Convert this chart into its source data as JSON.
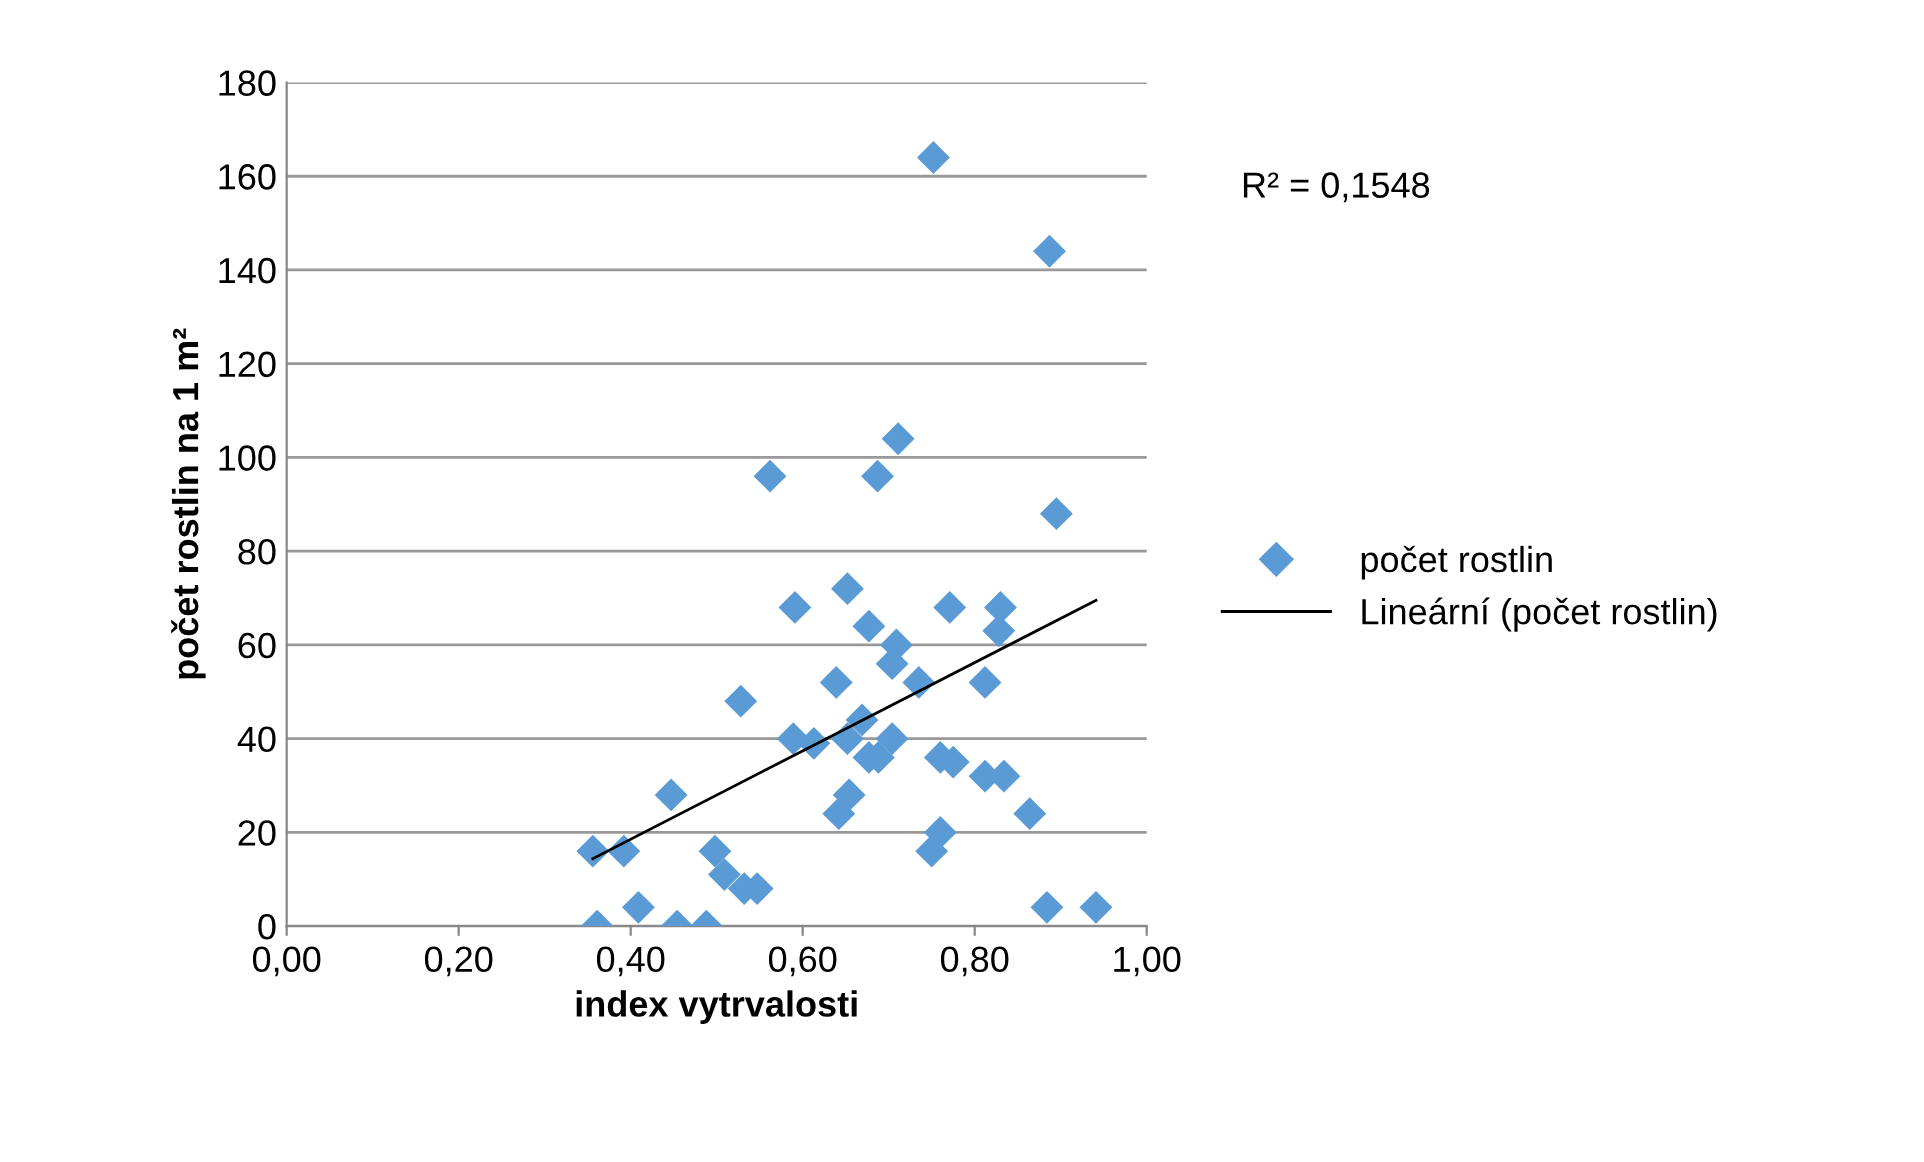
{
  "chart_data": {
    "type": "scatter",
    "xlabel": "index vytrvalosti",
    "ylabel": "počet rostlin na 1 m²",
    "annotations": [
      "R² = 0,1548"
    ],
    "xlim": [
      0,
      1
    ],
    "xticks": [
      {
        "value": 0,
        "label": "0,00"
      },
      {
        "value": 0.2,
        "label": "0,20"
      },
      {
        "value": 0.4,
        "label": "0,40"
      },
      {
        "value": 0.6,
        "label": "0,60"
      },
      {
        "value": 0.8,
        "label": "0,80"
      },
      {
        "value": 1,
        "label": "1,00"
      }
    ],
    "ylim": [
      0,
      180
    ],
    "yticks": [
      0,
      20,
      40,
      60,
      80,
      100,
      120,
      140,
      160,
      180
    ],
    "grid": "y",
    "legend": "right",
    "series": [
      {
        "name": "počet rostlin",
        "marker": "diamond",
        "color": "#5b9bd5",
        "x": [
          0.752,
          0.887,
          0.562,
          0.687,
          0.711,
          0.895,
          0.652,
          0.591,
          0.771,
          0.83,
          0.828,
          0.677,
          0.709,
          0.704,
          0.639,
          0.735,
          0.812,
          0.528,
          0.669,
          0.589,
          0.613,
          0.652,
          0.704,
          0.677,
          0.688,
          0.76,
          0.775,
          0.812,
          0.834,
          0.654,
          0.447,
          0.642,
          0.864,
          0.76,
          0.75,
          0.356,
          0.392,
          0.498,
          0.509,
          0.532,
          0.547,
          0.409,
          0.884,
          0.941,
          0.361,
          0.454,
          0.488
        ],
        "values": [
          164,
          144,
          96,
          96,
          104,
          88,
          72,
          68,
          68,
          68,
          63,
          64,
          60,
          56,
          52,
          52,
          52,
          48,
          44,
          40,
          39,
          40,
          40,
          36,
          36,
          36,
          35,
          32,
          32,
          28,
          28,
          24,
          24,
          20,
          16,
          16,
          16,
          16,
          11,
          8,
          8,
          4,
          4,
          4,
          0,
          0,
          0
        ]
      },
      {
        "name": "Lineární (počet rostlin)",
        "type": "line",
        "marker": "none",
        "line_style": "solid",
        "color": "#000000",
        "x": [
          0.356,
          0.941
        ],
        "values": [
          14.4,
          69.5
        ]
      }
    ]
  }
}
